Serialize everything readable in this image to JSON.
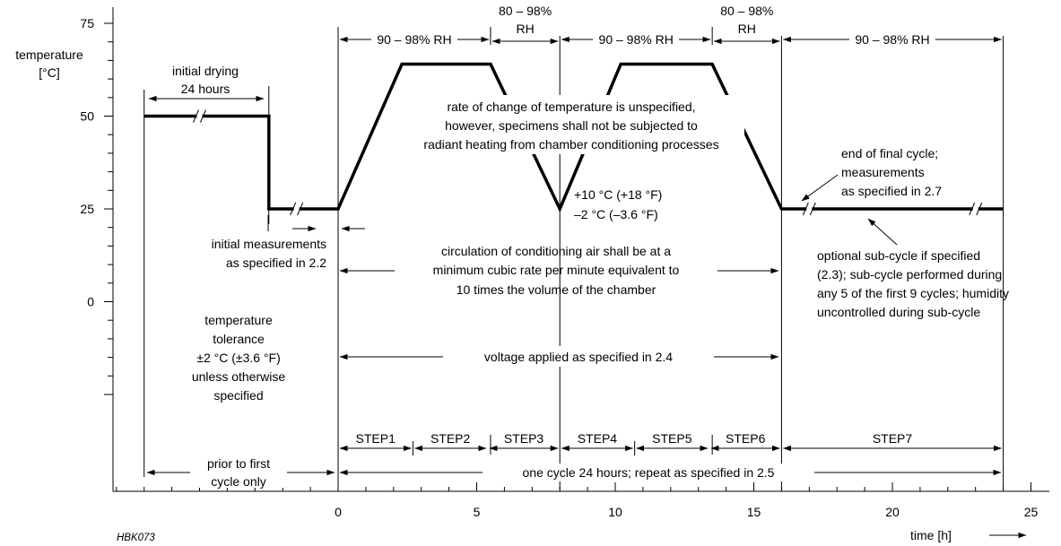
{
  "chart_data": {
    "type": "line",
    "id_label": "HBK073",
    "xlabel": "time [h]",
    "ylabel": [
      "temperature",
      "[°C]"
    ],
    "xlim": [
      -7.5,
      25.5
    ],
    "ylim": [
      -60,
      80
    ],
    "x_ticks": [
      0,
      5,
      10,
      15,
      20,
      25
    ],
    "y_ticks": [
      0,
      25,
      50,
      75
    ],
    "series": [
      {
        "x": [
          -7,
          -2.5,
          -2.5,
          0,
          2.3,
          5.5,
          8,
          10.2,
          13.5,
          16,
          24
        ],
        "y": [
          50,
          50,
          25,
          25,
          64,
          64,
          25,
          64,
          64,
          25,
          25
        ]
      }
    ],
    "break_marks": [
      {
        "x": -5,
        "y": 50
      },
      {
        "x": -1.5,
        "y": 25
      },
      {
        "x": 17,
        "y": 25
      },
      {
        "x": 23,
        "y": 25
      }
    ],
    "boundaries": [
      -7,
      -2.5,
      0,
      5.5,
      8,
      13.5,
      16,
      24
    ],
    "rh_labels": [
      {
        "text": "90 – 98% RH",
        "x1": 0,
        "x2": 5.5
      },
      {
        "text": [
          "80 – 98%",
          "RH"
        ],
        "x1": 5.5,
        "x2": 8
      },
      {
        "text": "90 – 98% RH",
        "x1": 8,
        "x2": 13.5
      },
      {
        "text": [
          "80 – 98%",
          "RH"
        ],
        "x1": 13.5,
        "x2": 16
      },
      {
        "text": "90 – 98% RH",
        "x1": 16,
        "x2": 24
      }
    ],
    "steps": [
      {
        "label": "STEP1",
        "x1": 0,
        "x2": 2.7
      },
      {
        "label": "STEP2",
        "x1": 2.7,
        "x2": 5.4
      },
      {
        "label": "STEP3",
        "x1": 5.4,
        "x2": 8
      },
      {
        "label": "STEP4",
        "x1": 8,
        "x2": 10.7
      },
      {
        "label": "STEP5",
        "x1": 10.7,
        "x2": 13.4
      },
      {
        "label": "STEP6",
        "x1": 13.4,
        "x2": 16
      },
      {
        "label": "STEP7",
        "x1": 16,
        "x2": 24
      }
    ],
    "annotations": {
      "initial_drying": [
        "initial drying",
        "24 hours"
      ],
      "rate_of_change": [
        "rate of change of temperature is unspecified,",
        "however, specimens shall not be subjected to",
        "radiant heating from chamber conditioning processes"
      ],
      "temp_tol_dip": [
        "+10 °C (+18 °F)",
        "–2 °C (–3.6 °F)"
      ],
      "end_of_final": [
        "end of final cycle;",
        "measurements",
        "as specified in 2.7"
      ],
      "initial_measurements": [
        "initial measurements",
        "as specified in 2.2"
      ],
      "circulation": [
        "circulation of conditioning air shall be at a",
        "minimum cubic rate per minute equivalent to",
        "10 times the volume of the chamber"
      ],
      "optional_subcycle": [
        "optional sub-cycle if specified",
        "(2.3); sub-cycle performed during",
        "any 5 of the first 9 cycles; humidity",
        "uncontrolled during sub-cycle"
      ],
      "temperature_tolerance": [
        "temperature",
        "tolerance",
        "±2 °C (±3.6 °F)",
        "unless otherwise",
        "specified"
      ],
      "voltage": "voltage applied as specified in 2.4",
      "prior_to_first": [
        "prior to first",
        "cycle only"
      ],
      "one_cycle": "one cycle 24 hours; repeat as specified in 2.5"
    }
  }
}
